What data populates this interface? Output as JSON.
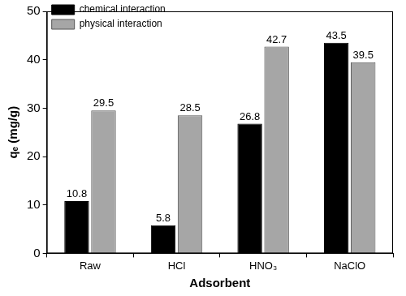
{
  "chart_data": {
    "type": "bar",
    "categories": [
      "Raw",
      "HCl",
      "HNO₃",
      "NaClO"
    ],
    "series": [
      {
        "name": "chemical interaction",
        "color": "#000000",
        "values": [
          10.8,
          5.8,
          26.8,
          43.5
        ]
      },
      {
        "name": "physical interaction",
        "color": "#a6a6a6",
        "values": [
          29.5,
          28.5,
          42.7,
          39.5
        ]
      }
    ],
    "x_label": "Adsorbent",
    "y_label": "qₑ (mg/g)",
    "ylim": [
      0,
      50
    ],
    "yticks": [
      0,
      10,
      20,
      30,
      40,
      50
    ],
    "grid": false,
    "legend": "upper left",
    "data_labels": true
  }
}
